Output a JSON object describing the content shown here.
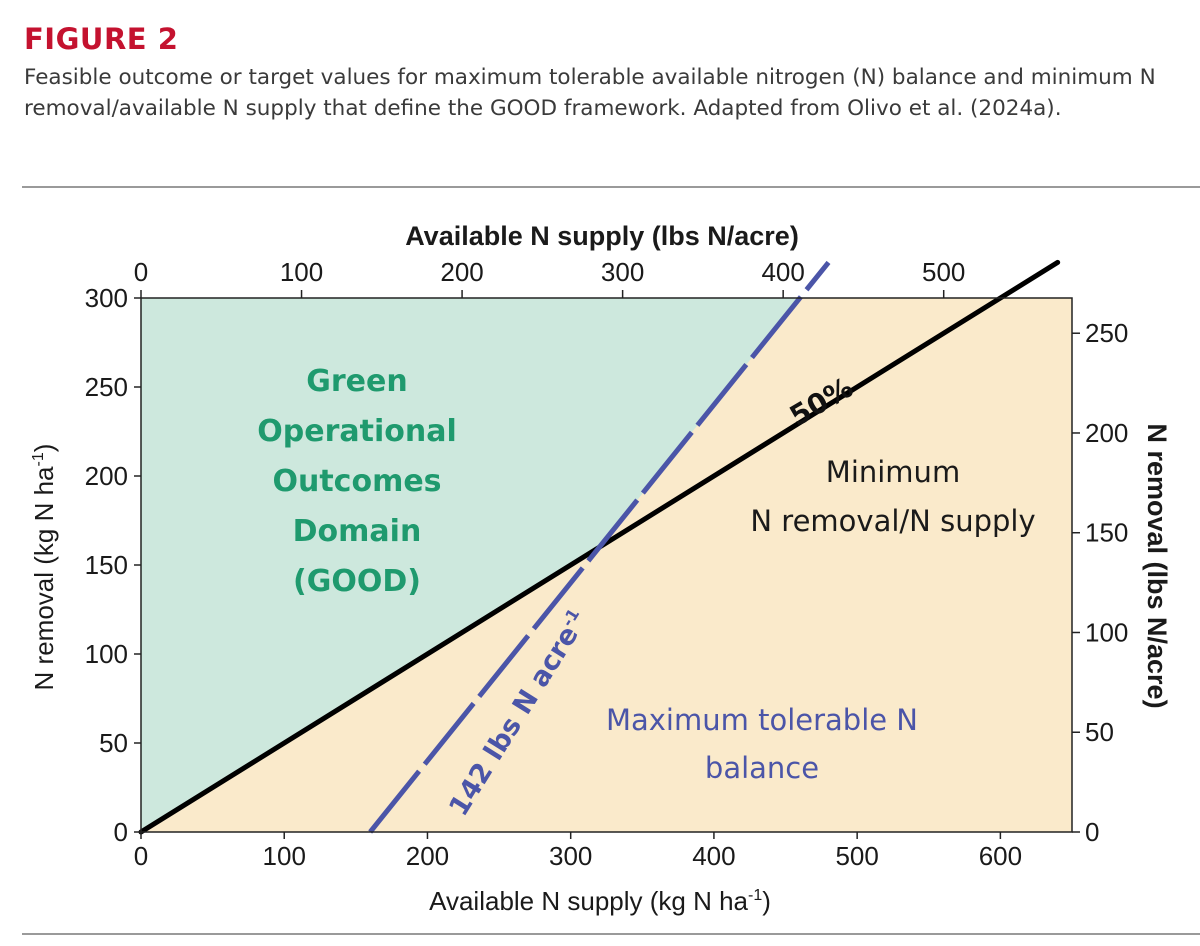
{
  "figure": {
    "label": "FIGURE 2",
    "caption": "Feasible outcome or target values for maximum tolerable available nitrogen (N) balance and minimum N removal/available N supply that define the GOOD framework. Adapted from Olivo et al. (2024a)."
  },
  "colors": {
    "label_red": "#c4122f",
    "good_region": "#cde8dd",
    "outside_region": "#faeacb",
    "ratio_line": "#000000",
    "balance_line": "#4b55a8",
    "good_text": "#1f9a6e"
  },
  "chart_data": {
    "type": "line",
    "xlabel": "Available N supply (kg N ha",
    "xlabel_sup": "-1",
    "xlabel_end": ")",
    "ylabel": "N removal (kg N ha",
    "ylabel_sup": "-1",
    "ylabel_end": ")",
    "x2label": "Available N supply (lbs N/acre)",
    "y2label": "N removal (lbs N/acre)",
    "xlim": [
      0,
      650
    ],
    "ylim": [
      0,
      300
    ],
    "x_ticks": [
      0,
      100,
      200,
      300,
      400,
      500,
      600
    ],
    "y_ticks": [
      0,
      50,
      100,
      150,
      200,
      250,
      300
    ],
    "x2_ticks": [
      0,
      100,
      200,
      300,
      400,
      500
    ],
    "y2_ticks": [
      0,
      50,
      100,
      150,
      200,
      250
    ],
    "series": [
      {
        "name": "50%",
        "x": [
          0,
          640
        ],
        "y": [
          0,
          320
        ]
      },
      {
        "name": "142 lbs N acre",
        "x": [
          160,
          480
        ],
        "y": [
          0,
          320
        ]
      }
    ],
    "annotations": {
      "good_lines": [
        "Green",
        "Operational",
        "Outcomes",
        "Domain",
        "(GOOD)"
      ],
      "min_lines": [
        "Minimum",
        "N removal/N supply"
      ],
      "max_lines": [
        "Maximum tolerable N",
        "balance"
      ],
      "ratio_label": "50%",
      "balance_label": "142 lbs N acre",
      "balance_label_sup": "-1"
    }
  }
}
